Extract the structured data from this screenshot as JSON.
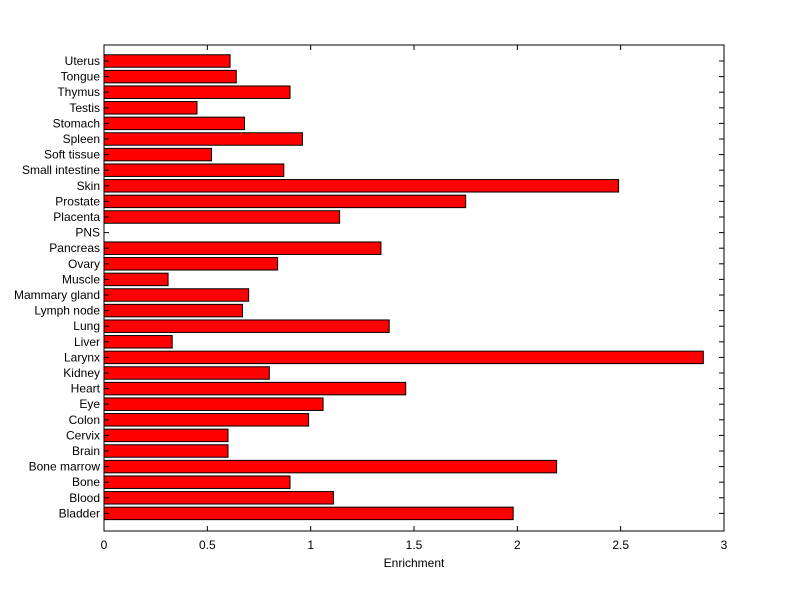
{
  "chart_data": {
    "type": "bar",
    "orientation": "horizontal",
    "categories": [
      "Uterus",
      "Tongue",
      "Thymus",
      "Testis",
      "Stomach",
      "Spleen",
      "Soft tissue",
      "Small intestine",
      "Skin",
      "Prostate",
      "Placenta",
      "PNS",
      "Pancreas",
      "Ovary",
      "Muscle",
      "Mammary gland",
      "Lymph node",
      "Lung",
      "Liver",
      "Larynx",
      "Kidney",
      "Heart",
      "Eye",
      "Colon",
      "Cervix",
      "Brain",
      "Bone marrow",
      "Bone",
      "Blood",
      "Bladder"
    ],
    "values": [
      0.61,
      0.64,
      0.9,
      0.45,
      0.68,
      0.96,
      0.52,
      0.87,
      2.49,
      1.75,
      1.14,
      0,
      1.34,
      0.84,
      0.31,
      0.7,
      0.67,
      1.38,
      0.33,
      2.9,
      0.8,
      1.46,
      1.06,
      0.99,
      0.6,
      0.6,
      2.19,
      0.9,
      1.11,
      1.98
    ],
    "xlabel": "Enrichment",
    "xlim": [
      0,
      3
    ],
    "xticks": [
      "0",
      "0.5",
      "1",
      "1.5",
      "2",
      "2.5",
      "3"
    ],
    "bar_color": "#ff0000",
    "grid": false
  }
}
